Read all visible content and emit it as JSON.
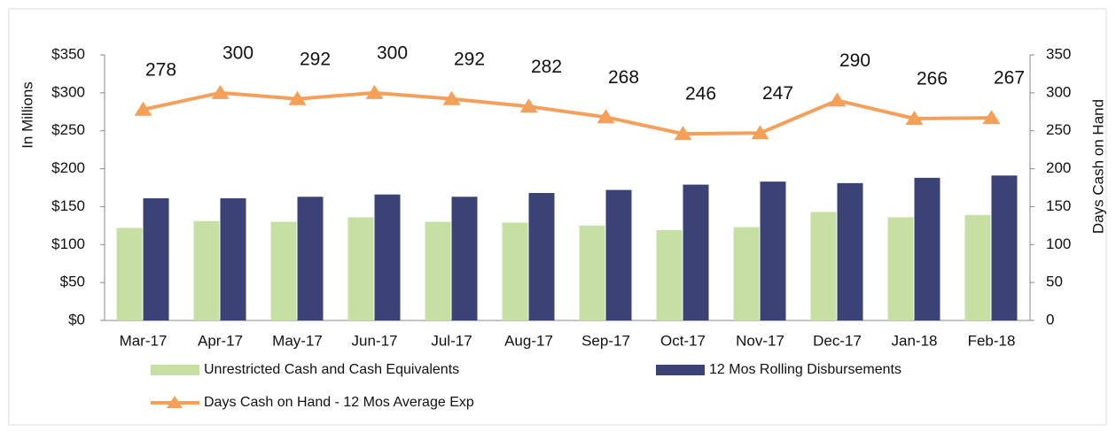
{
  "chart_data": {
    "type": "bar_line",
    "ylabel": "In Millions",
    "y2label": "Days Cash on Hand",
    "categories": [
      "Mar-17",
      "Apr-17",
      "May-17",
      "Jun-17",
      "Jul-17",
      "Aug-17",
      "Sep-17",
      "Oct-17",
      "Nov-17",
      "Dec-17",
      "Jan-18",
      "Feb-18"
    ],
    "series": [
      {
        "name": "Unrestricted Cash and Cash Equivalents",
        "type": "bar",
        "color": "#c6e0a4",
        "values": [
          122,
          131,
          130,
          136,
          130,
          129,
          125,
          119,
          123,
          143,
          136,
          139
        ]
      },
      {
        "name": "12 Mos Rolling Disbursements",
        "type": "bar",
        "color": "#3b4275",
        "values": [
          161,
          161,
          163,
          166,
          163,
          168,
          172,
          179,
          183,
          181,
          188,
          191
        ]
      },
      {
        "name": "Days Cash on Hand - 12 Mos Average Exp",
        "type": "line",
        "axis": "y2",
        "color": "#f5a05a",
        "values": [
          278,
          300,
          292,
          300,
          292,
          282,
          268,
          246,
          247,
          290,
          266,
          267
        ]
      }
    ],
    "ylim": [
      0,
      350
    ],
    "yticks": [
      {
        "value": 0,
        "label": "$0"
      },
      {
        "value": 50,
        "label": "$50"
      },
      {
        "value": 100,
        "label": "$100"
      },
      {
        "value": 150,
        "label": "$150"
      },
      {
        "value": 200,
        "label": "$200"
      },
      {
        "value": 250,
        "label": "$250"
      },
      {
        "value": 300,
        "label": "$300"
      },
      {
        "value": 350,
        "label": "$350"
      }
    ],
    "y2lim": [
      0,
      350
    ],
    "y2ticks": [
      0,
      50,
      100,
      150,
      200,
      250,
      300,
      350
    ],
    "grid": false
  }
}
